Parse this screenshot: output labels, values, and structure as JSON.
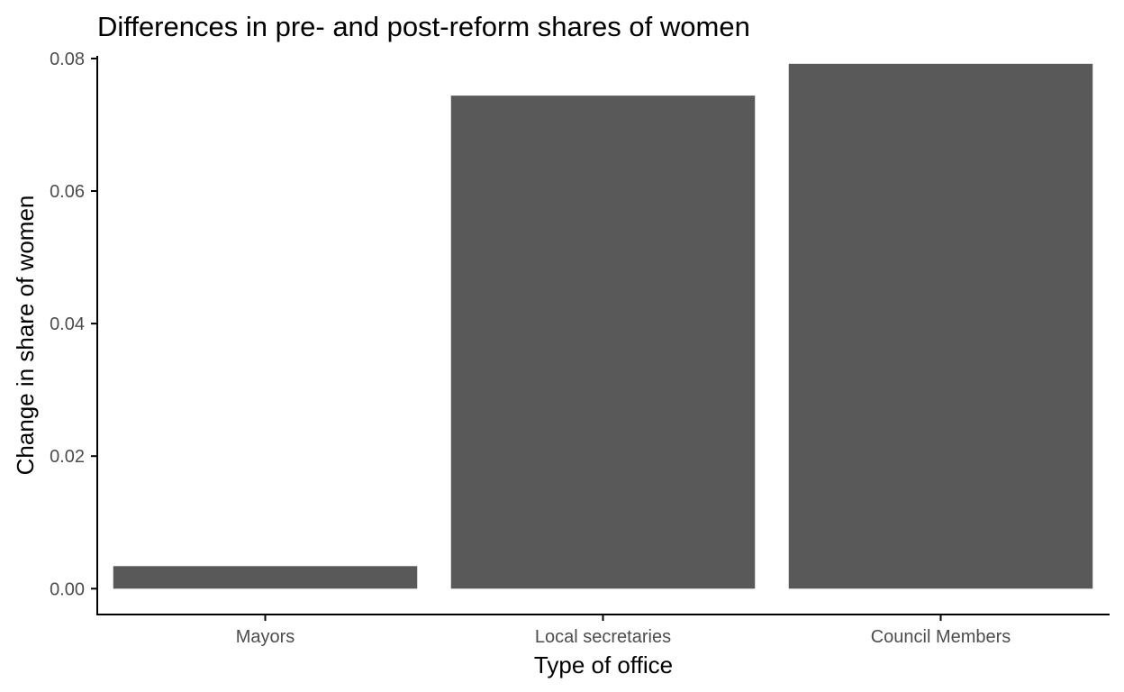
{
  "chart_data": {
    "type": "bar",
    "title": "Differences in pre- and post-reform shares of women",
    "xlabel": "Type of office",
    "ylabel": "Change in share of women",
    "categories": [
      "Mayors",
      "Local secretaries",
      "Council Members"
    ],
    "values": [
      0.0034,
      0.0744,
      0.0792
    ],
    "ylim": [
      -0.0039,
      0.0804
    ],
    "yticks": [
      0.0,
      0.02,
      0.04,
      0.06,
      0.08
    ],
    "ytick_labels": [
      "0.00",
      "0.02",
      "0.04",
      "0.06",
      "0.08"
    ],
    "grid": false,
    "legend": "none",
    "bar_color": "#595959"
  }
}
